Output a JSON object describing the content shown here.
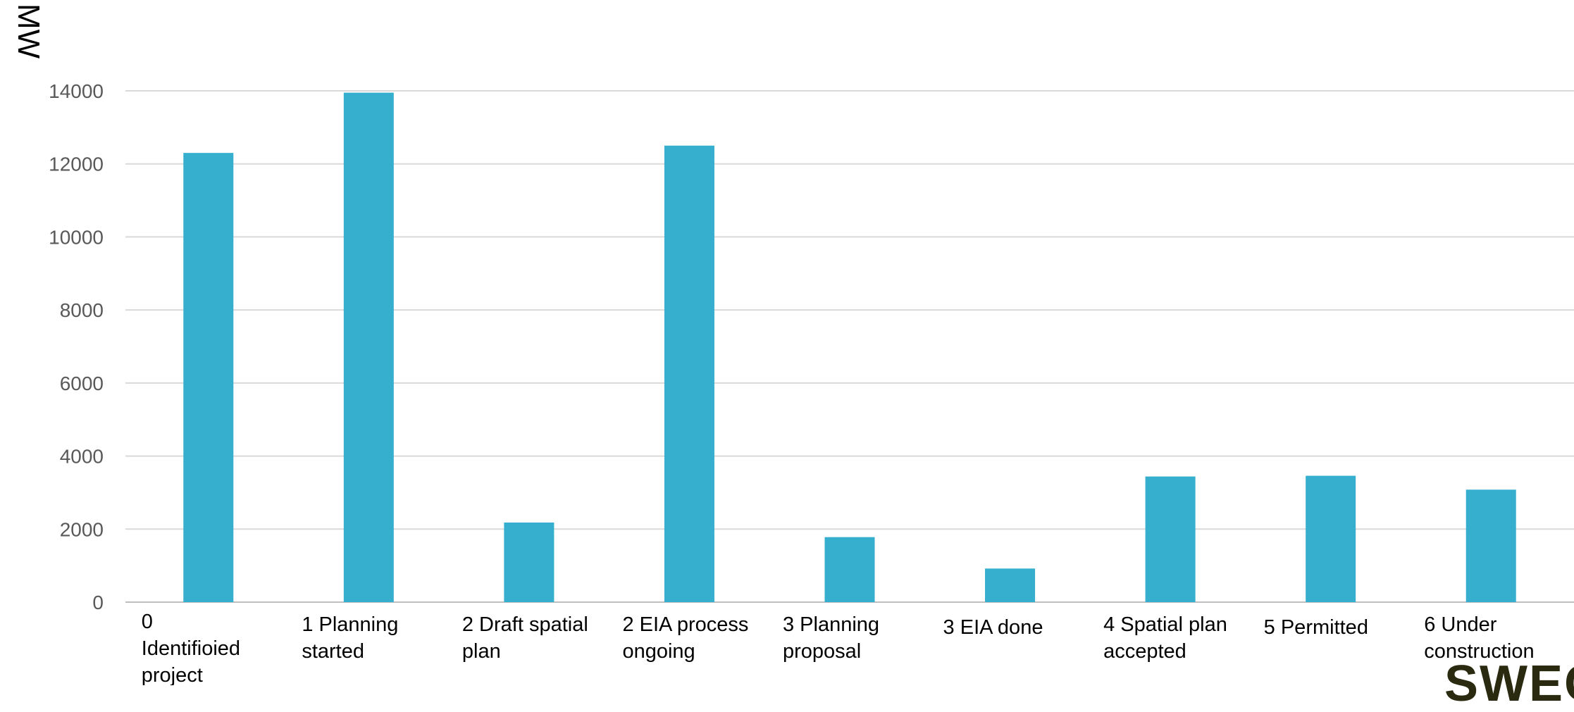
{
  "chart_data": {
    "type": "bar",
    "ylabel": "MW",
    "xlabel": "",
    "title": "",
    "ylim": [
      0,
      14000
    ],
    "yticks": [
      0,
      2000,
      4000,
      6000,
      8000,
      10000,
      12000,
      14000
    ],
    "grid": true,
    "categories": [
      "0 Identifioied project",
      "1 Planning started",
      "2 Draft spatial plan",
      "2 EIA process ongoing",
      "3 Planning proposal",
      "3 EIA done",
      "4 Spatial plan accepted",
      "5 Permitted",
      "6 Under construction"
    ],
    "category_lines": [
      [
        "0",
        "Identifioied",
        "project"
      ],
      [
        "1 Planning",
        "started"
      ],
      [
        "2 Draft spatial",
        "plan"
      ],
      [
        "2 EIA process",
        "ongoing"
      ],
      [
        "3 Planning",
        "proposal"
      ],
      [
        "3 EIA done"
      ],
      [
        "4 Spatial plan",
        "accepted"
      ],
      [
        "5 Permitted"
      ],
      [
        "6 Under",
        "construction"
      ]
    ],
    "values": [
      12300,
      13950,
      2180,
      12500,
      1780,
      920,
      3440,
      3460,
      3080
    ],
    "bar_color": "#36AECE",
    "grid_color": "#D9D9D9",
    "tick_color": "#595959"
  },
  "logo": {
    "text": "SWECO"
  }
}
